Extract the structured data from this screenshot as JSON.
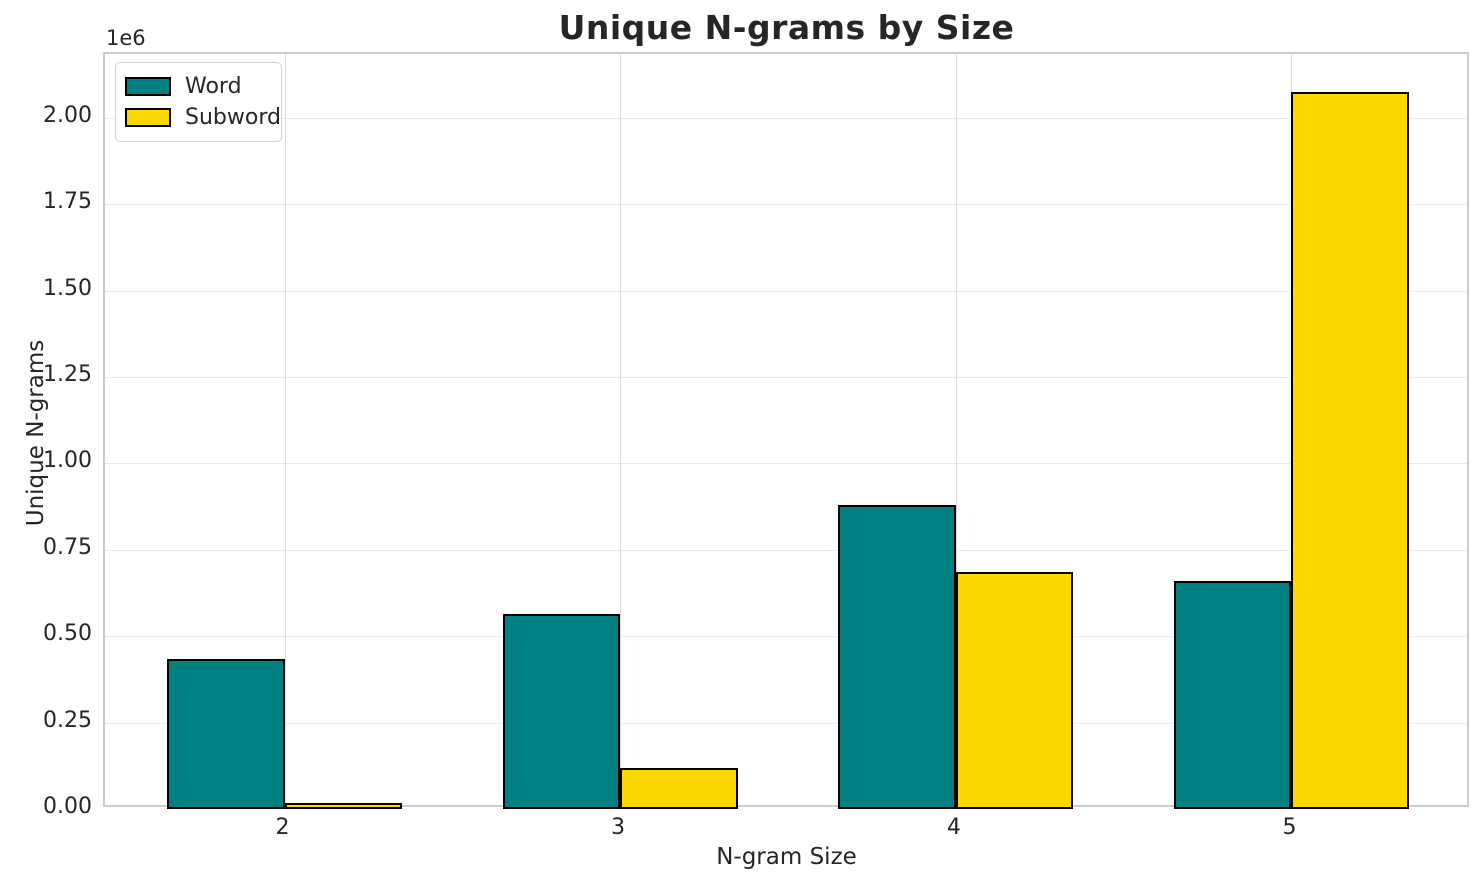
{
  "chart_data": {
    "type": "bar",
    "title": "Unique N-grams by Size",
    "xlabel": "N-gram Size",
    "ylabel": "Unique N-grams",
    "offset_text": "1e6",
    "categories": [
      "2",
      "3",
      "4",
      "5"
    ],
    "series": [
      {
        "name": "Word",
        "color": "#008080",
        "values": [
          433000,
          565000,
          881000,
          660000
        ]
      },
      {
        "name": "Subword",
        "color": "#FFD700",
        "values": [
          16000,
          119000,
          686000,
          2076000
        ]
      }
    ],
    "bar_edge_color": "#000000",
    "ylim": [
      0,
      2185000
    ],
    "yticks": [
      0,
      250000,
      500000,
      750000,
      1000000,
      1250000,
      1500000,
      1750000,
      2000000
    ],
    "ytick_labels": [
      "0.00",
      "0.25",
      "0.50",
      "0.75",
      "1.00",
      "1.25",
      "1.50",
      "1.75",
      "2.00"
    ],
    "grid": true,
    "legend_position": "upper-left"
  }
}
